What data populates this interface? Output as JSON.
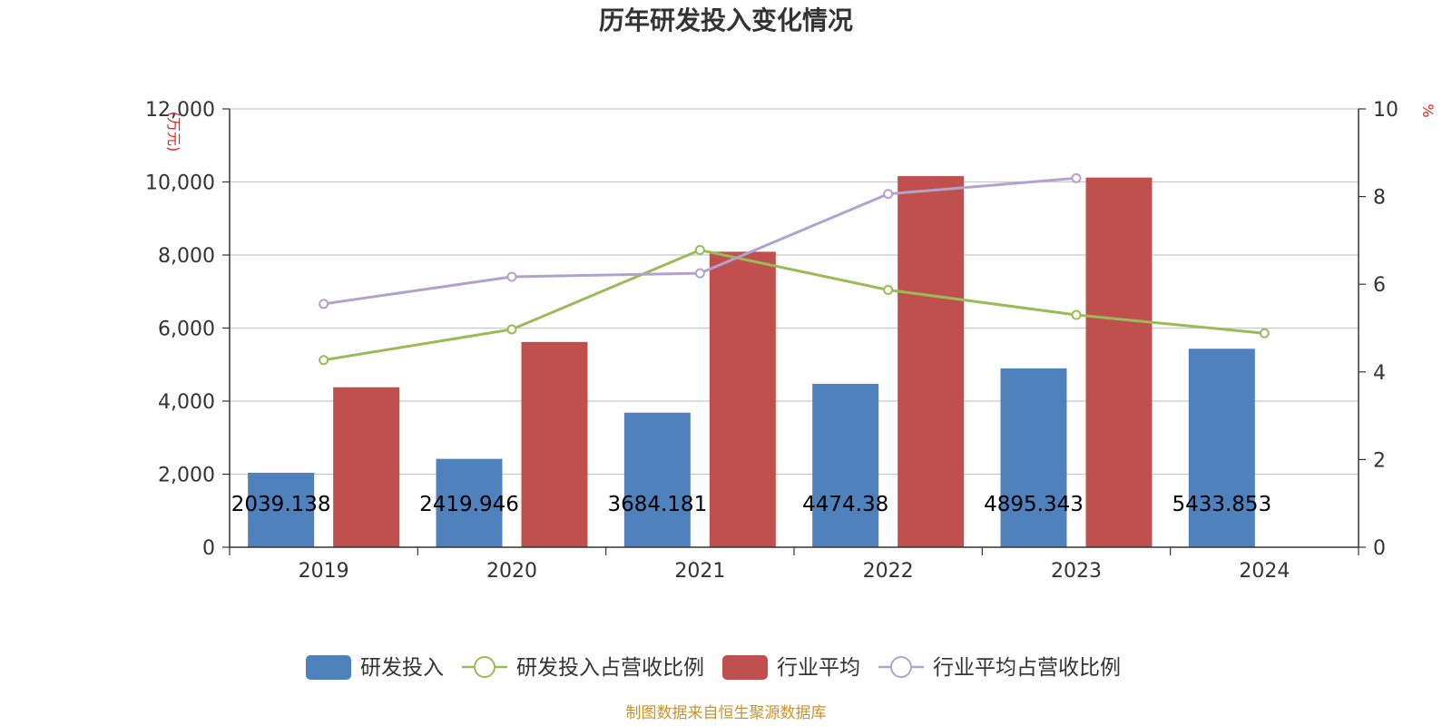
{
  "chart_data": {
    "type": "bar",
    "title": "历年研发投入变化情况",
    "categories": [
      "2019",
      "2020",
      "2021",
      "2022",
      "2023",
      "2024"
    ],
    "y_left": {
      "unit": "(万元)",
      "range": [
        0,
        12000
      ],
      "ticks": [
        "0",
        "2,000",
        "4,000",
        "6,000",
        "8,000",
        "10,000",
        "12,000"
      ]
    },
    "y_right": {
      "unit": "%",
      "range": [
        0,
        10
      ],
      "ticks": [
        "0",
        "2",
        "4",
        "6",
        "8",
        "10"
      ]
    },
    "grid": true,
    "legend_position": "bottom",
    "series": [
      {
        "name": "研发投入",
        "type": "bar",
        "axis": "left",
        "color": "#4f81bd",
        "values": [
          2039.138,
          2419.946,
          3684.181,
          4474.38,
          4895.343,
          5433.853
        ],
        "labels": [
          "2039.138",
          "2419.946",
          "3684.181",
          "4474.38",
          "4895.343",
          "5433.853"
        ]
      },
      {
        "name": "研发投入占营收比例",
        "type": "line",
        "axis": "right",
        "color": "#9bbb59",
        "values": [
          4.27,
          4.97,
          6.78,
          5.87,
          5.3,
          4.88
        ]
      },
      {
        "name": "行业平均",
        "type": "bar",
        "axis": "left",
        "color": "#c0504d",
        "values": [
          4380,
          5620,
          8090,
          10160,
          10120,
          null
        ]
      },
      {
        "name": "行业平均占营收比例",
        "type": "line",
        "axis": "right",
        "color": "#b3a2cc",
        "values": [
          5.55,
          6.17,
          6.25,
          8.06,
          8.42,
          null
        ]
      }
    ]
  },
  "footer": {
    "source": "制图数据来自恒生聚源数据库"
  }
}
